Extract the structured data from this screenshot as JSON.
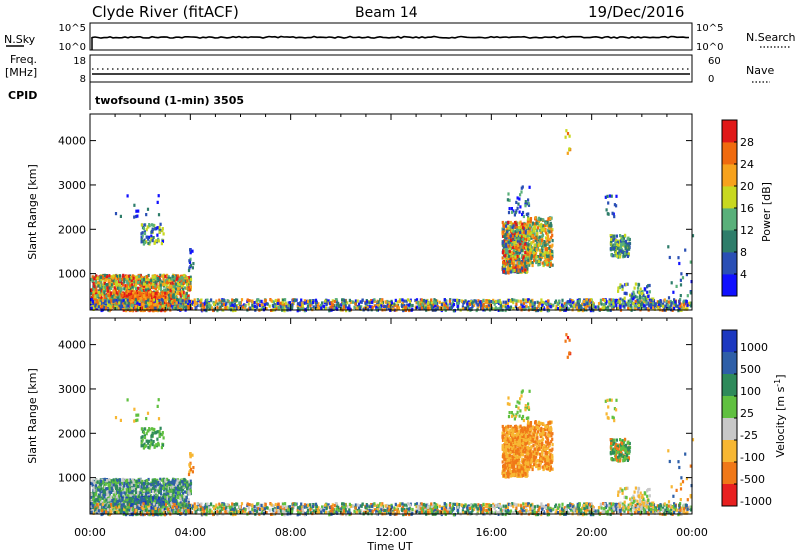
{
  "header": {
    "title": "Clyde River (fitACF)",
    "beam": "Beam 14",
    "date": "19/Dec/2016"
  },
  "top_panels": {
    "nsky_label": "N.Sky",
    "nsky_ticks": [
      "10^5",
      "10^0"
    ],
    "nsearch_label": "N.Search",
    "nsearch_ticks": [
      "10^5",
      "10^0"
    ],
    "freq_label_1": "Freq.",
    "freq_label_2": "[MHz]",
    "freq_ticks": [
      "18",
      "8"
    ],
    "nave_label": "Nave",
    "nave_ticks": [
      "60",
      "0"
    ],
    "cpid_label": "CPID",
    "cpid_text": "twofsound (1-min) 3505"
  },
  "chart_data": [
    {
      "type": "heatmap",
      "title": "",
      "xlabel": "Time UT",
      "ylabel": "Slant Range [km]",
      "x_ticks": [
        "00:00",
        "04:00",
        "08:00",
        "12:00",
        "16:00",
        "20:00",
        "00:00"
      ],
      "x_range_hours": [
        0,
        24
      ],
      "y_ticks": [
        1000,
        2000,
        3000,
        4000
      ],
      "ylim": [
        180,
        4600
      ],
      "colorbar_label": "Power [dB]",
      "colorbar_ticks": [
        4,
        8,
        12,
        16,
        20,
        24,
        28
      ],
      "colorbar_range": [
        0,
        32
      ],
      "colors": [
        "#1010ff",
        "#2a4fb5",
        "#2e7d6a",
        "#59b07a",
        "#c8d820",
        "#f7a21c",
        "#f06a0e",
        "#e01818"
      ]
    },
    {
      "type": "heatmap",
      "title": "",
      "xlabel": "Time UT",
      "ylabel": "Slant Range [km]",
      "x_ticks": [
        "00:00",
        "04:00",
        "08:00",
        "12:00",
        "16:00",
        "20:00",
        "00:00"
      ],
      "x_range_hours": [
        0,
        24
      ],
      "y_ticks": [
        1000,
        2000,
        3000,
        4000
      ],
      "ylim": [
        180,
        4600
      ],
      "colorbar_label": "Velocity [m s^-1]",
      "colorbar_ticks": [
        "1000",
        "500",
        "100",
        "25",
        "-25",
        "-100",
        "-500",
        "-1000"
      ],
      "colors": [
        "#1c38c0",
        "#2e5fa8",
        "#2e8a5a",
        "#60c040",
        "#c8c8c8",
        "#f7b733",
        "#f07818",
        "#e82020"
      ]
    }
  ]
}
